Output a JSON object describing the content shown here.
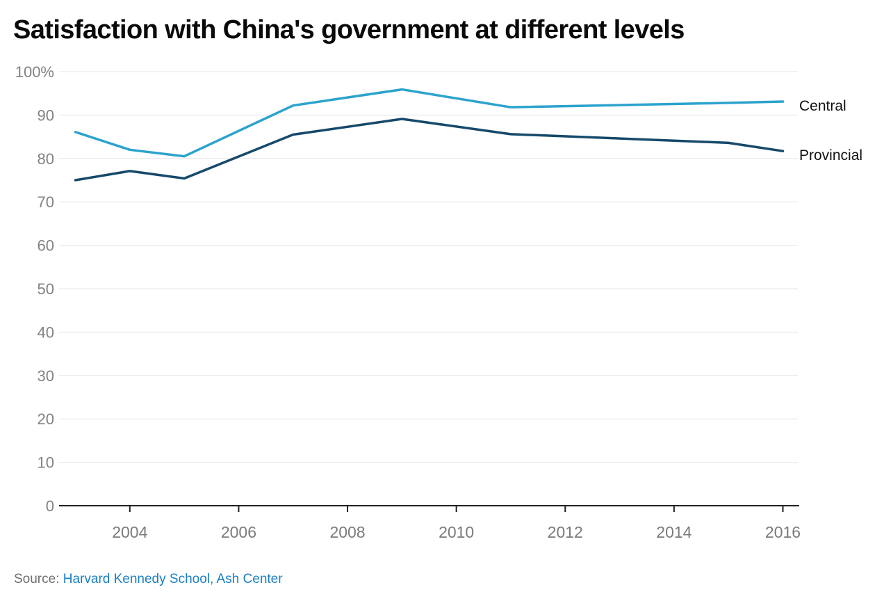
{
  "title": "Satisfaction with China's government at different levels",
  "source": {
    "prefix": "Source: ",
    "link_text": "Harvard Kennedy School, Ash Center"
  },
  "colors": {
    "central_line": "#2ca3cd",
    "provincial_line": "#16496a",
    "gridline": "#e5e5e5",
    "axis": "#212121",
    "y_tick_label": "#828282",
    "x_tick_label": "#7b7b7b",
    "title": "#0a0a0a",
    "series_label": "#111111",
    "source_text": "#6e6e6e",
    "source_link": "#1b7fc1"
  },
  "chart_data": {
    "type": "line",
    "title": "Satisfaction with China's government at different levels",
    "x": [
      2003,
      2004,
      2005,
      2007,
      2009,
      2011,
      2015,
      2016
    ],
    "series": [
      {
        "name": "Central",
        "color": "#2ca3cd",
        "values": [
          86.1,
          82.0,
          80.5,
          92.2,
          95.9,
          91.8,
          92.8,
          93.1
        ]
      },
      {
        "name": "Provincial",
        "color": "#16496a",
        "values": [
          75.0,
          77.1,
          75.4,
          85.5,
          89.1,
          85.6,
          83.6,
          81.7
        ]
      }
    ],
    "xticks": [
      2004,
      2006,
      2008,
      2010,
      2012,
      2014,
      2016
    ],
    "yticks": [
      0,
      10,
      20,
      30,
      40,
      50,
      60,
      70,
      80,
      90,
      100
    ],
    "ytick_top_label": "100%",
    "xlabel": "",
    "ylabel": "",
    "ylim": [
      0,
      100
    ],
    "xlim": [
      2002.7,
      2016.3
    ],
    "grid": true,
    "legend_position": "right-end-labels"
  }
}
